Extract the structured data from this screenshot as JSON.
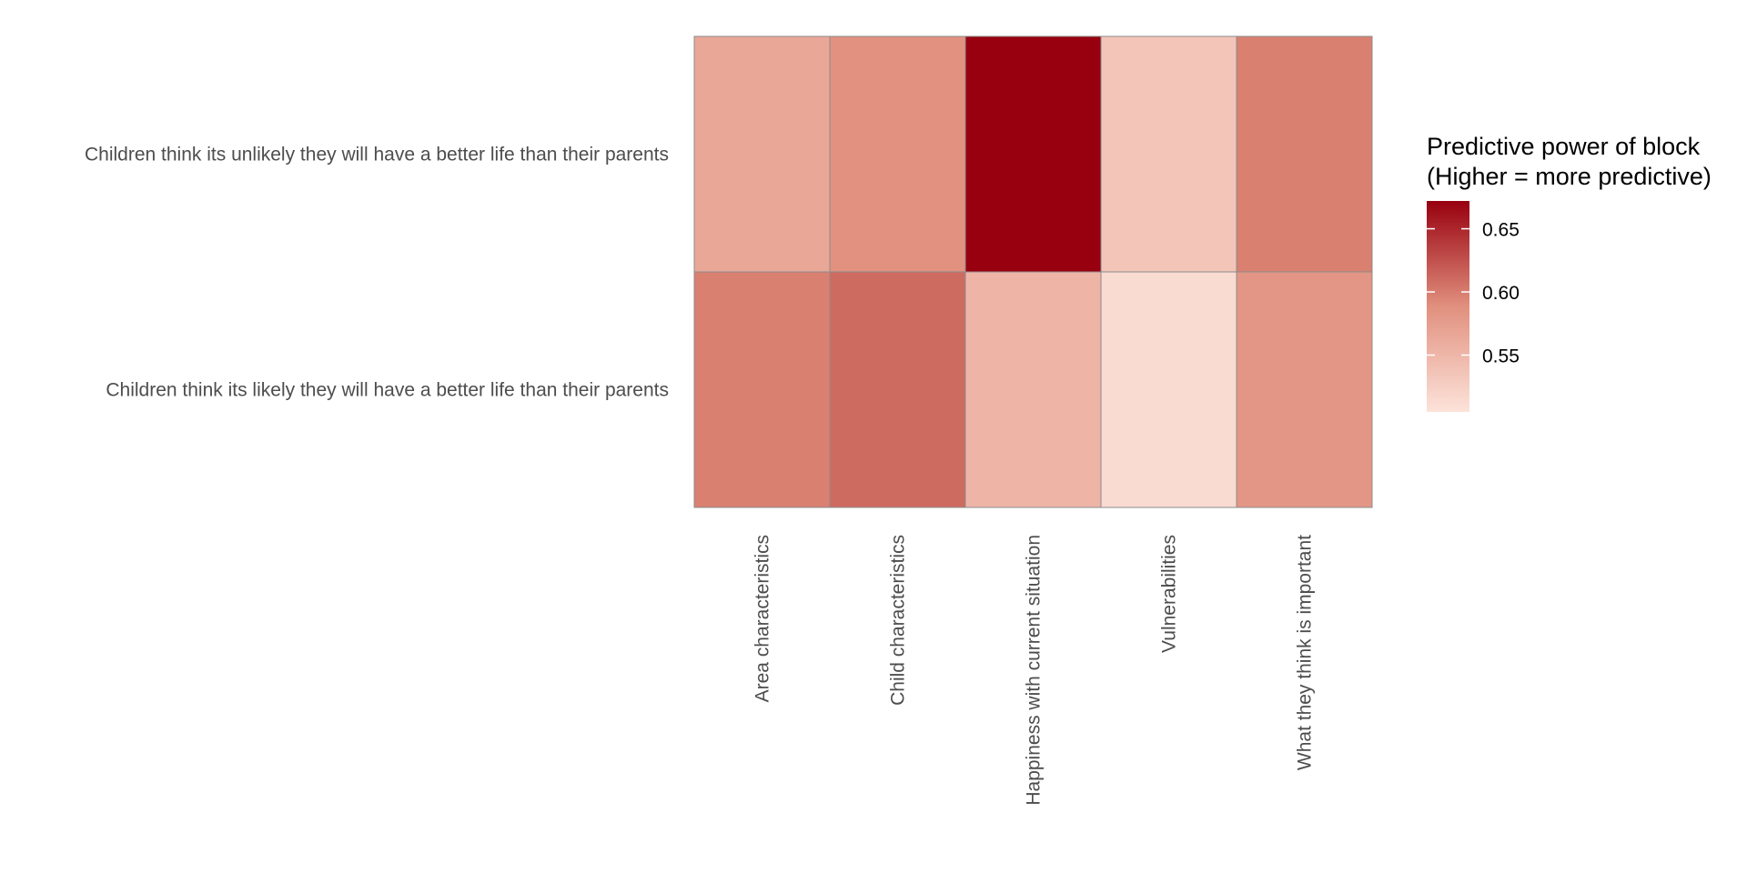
{
  "chart_data": {
    "type": "heatmap",
    "title": "",
    "xlabel": "",
    "ylabel": "",
    "x_categories": [
      "Area characteristics",
      "Child characteristics",
      "Happiness with current situation",
      "Vulnerabilities",
      "What they think is important"
    ],
    "y_categories": [
      "Children think its unlikely they will have a better life than their parents",
      "Children think its likely they will have a better life than their parents"
    ],
    "values": [
      [
        0.565,
        0.587,
        0.672,
        0.535,
        0.598
      ],
      [
        0.598,
        0.61,
        0.551,
        0.513,
        0.582
      ]
    ],
    "legend": {
      "title_line1": "Predictive power of block",
      "title_line2": "(Higher = more predictive)",
      "ticks": [
        0.55,
        0.6,
        0.65
      ],
      "tick_labels": [
        "0.55",
        "0.60",
        "0.65"
      ],
      "range": [
        0.505,
        0.672
      ],
      "low_color": "#fde3da",
      "mid_color": "#e1907e",
      "high_color": "#98000f",
      "position": "right"
    },
    "grid": false
  }
}
